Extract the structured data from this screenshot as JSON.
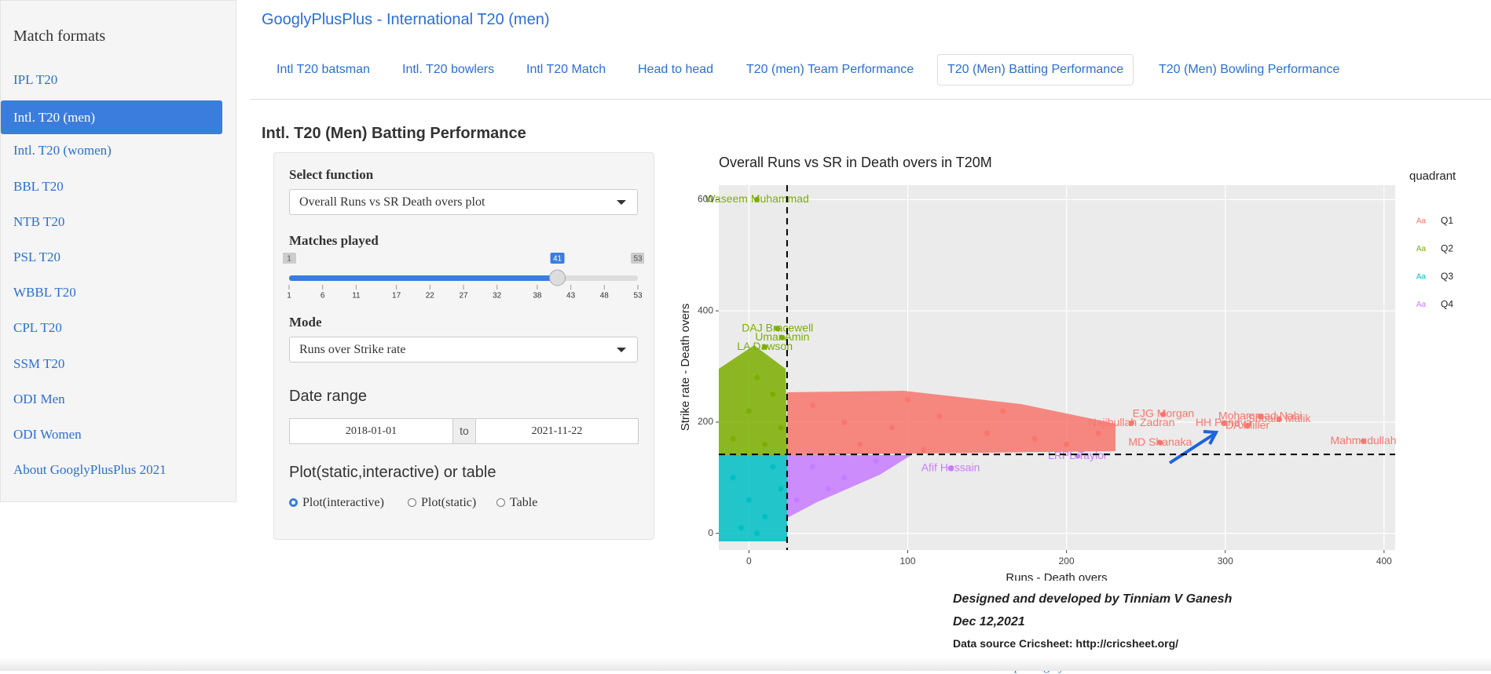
{
  "sidebar": {
    "title": "Match formats",
    "items": [
      "IPL T20",
      "Intl. T20 (men)",
      "Intl. T20 (women)",
      "BBL T20",
      "NTB T20",
      "PSL T20",
      "WBBL T20",
      "CPL T20",
      "SSM T20",
      "ODI Men",
      "ODI Women",
      "About GooglyPlusPlus 2021"
    ],
    "active": 1
  },
  "header": {
    "title": "GooglyPlusPlus - International T20 (men)"
  },
  "tabs": {
    "items": [
      "Intl T20 batsman",
      "Intl. T20 bowlers",
      "Intl T20 Match",
      "Head to head",
      "T20 (men) Team Performance",
      "T20 (Men) Batting Performance",
      "T20 (Men) Bowling Performance"
    ],
    "active": 5
  },
  "section_title": "Intl. T20 (Men) Batting Performance",
  "controls": {
    "function_label": "Select function",
    "function_value": "Overall Runs vs SR Death overs plot",
    "matches_label": "Matches played",
    "slider": {
      "min": 1,
      "max": 53,
      "value": 41,
      "ticks": [
        1,
        6,
        11,
        17,
        22,
        27,
        32,
        38,
        43,
        48,
        53
      ]
    },
    "mode_label": "Mode",
    "mode_value": "Runs over Strike rate",
    "date_label": "Date range",
    "date_start": "2018-01-01",
    "date_sep": "to",
    "date_end": "2021-11-22",
    "output_label": "Plot(static,interactive) or table",
    "options": [
      "Plot(interactive)",
      "Plot(static)",
      "Table"
    ],
    "selected": 0
  },
  "chart_data": {
    "type": "scatter",
    "title": "Overall Runs vs SR in Death overs in T20M",
    "x_label": "Runs - Death overs",
    "y_label": "Strike rate - Death overs",
    "legend_title": "quadrant",
    "legend_symbol": "Aa",
    "xlim": [
      -19,
      407
    ],
    "ylim": [
      -30,
      626
    ],
    "xticks": [
      0,
      100,
      200,
      300,
      400
    ],
    "yticks": [
      0,
      200,
      400,
      600
    ],
    "x_mean": 24,
    "y_mean": 142,
    "grid": true,
    "series": [
      {
        "name": "Q1",
        "color": "#F8766D",
        "x": [
          322,
          334,
          387,
          299,
          314,
          261,
          259,
          241,
          60,
          90,
          120,
          150,
          180,
          200,
          70,
          110,
          40,
          100,
          160,
          220
        ],
        "values": [
          210,
          205,
          166,
          198,
          193,
          214,
          163,
          198,
          200,
          190,
          210,
          180,
          170,
          160,
          160,
          150,
          230,
          240,
          220,
          180
        ],
        "labels": [
          "Mohammad Nabi",
          "Shoaib Malik",
          "Mahmudullah",
          "HH Pandya",
          "DA Miller",
          "EJG Morgan",
          "MD Shanaka",
          "Najibullah Zadran",
          null,
          null,
          null,
          null,
          null,
          null,
          null,
          null,
          null,
          null,
          null,
          null
        ]
      },
      {
        "name": "Q2",
        "color": "#7CAE00",
        "x": [
          5,
          18,
          21,
          10,
          5,
          15,
          0,
          20,
          -10,
          10
        ],
        "values": [
          600,
          368,
          352,
          335,
          280,
          250,
          220,
          190,
          170,
          160
        ],
        "labels": [
          "Waseem Muhammad",
          "DAJ Bracewell",
          "Umar Amin",
          "LA Dawson",
          null,
          null,
          null,
          null,
          null,
          null
        ]
      },
      {
        "name": "Q3",
        "color": "#00BFC4",
        "x": [
          -10,
          0,
          10,
          15,
          -5,
          20,
          5
        ],
        "values": [
          100,
          60,
          30,
          120,
          10,
          80,
          0
        ],
        "labels": [
          null,
          null,
          null,
          null,
          null,
          null,
          null
        ]
      },
      {
        "name": "Q4",
        "color": "#C77CFF",
        "x": [
          207,
          127,
          40,
          60,
          30,
          80,
          50
        ],
        "values": [
          139,
          117,
          120,
          100,
          60,
          130,
          80
        ],
        "labels": [
          "LRPL Taylor",
          "Afif Hossain",
          null,
          null,
          null,
          null,
          null
        ]
      }
    ]
  },
  "footer": {
    "credit": "Designed and developed by Tinniam V Ganesh",
    "date": "Dec 12,2021",
    "source": "Data source Cricsheet: http://cricsheet.org/",
    "link": "Based on R package yorkr"
  }
}
